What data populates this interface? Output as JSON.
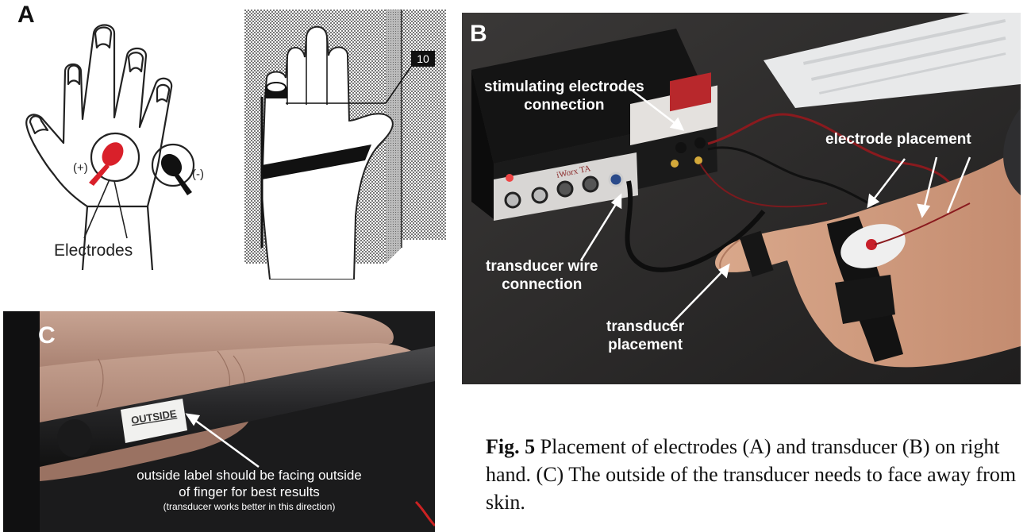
{
  "figure": {
    "caption_label": "Fig. 5",
    "caption_text": "Placement of electrodes (A) and transducer (B) on right hand. (C) The outside of the transducer needs to face away from skin."
  },
  "panel_a": {
    "letter": "A",
    "plus_label": "(+)",
    "minus_label": "(-)",
    "electrodes_label": "Electrodes",
    "sensor_tag": "10",
    "colors": {
      "positive_electrode": "#d9202a",
      "negative_electrode": "#111111"
    }
  },
  "panel_b": {
    "letter": "B",
    "device_brand": "iWorx TA",
    "annotations": {
      "stimulating": [
        "stimulating electrodes",
        "connection"
      ],
      "electrode_placement": "electrode placement",
      "transducer_wire": [
        "transducer wire",
        "connection"
      ],
      "transducer_placement": [
        "transducer",
        "placement"
      ]
    }
  },
  "panel_c": {
    "letter": "C",
    "label_sticker": "OUTSIDE",
    "note_line1": "outside label should be facing outside",
    "note_line2": "of finger for best results",
    "note_small": "(transducer works better in this direction)"
  }
}
